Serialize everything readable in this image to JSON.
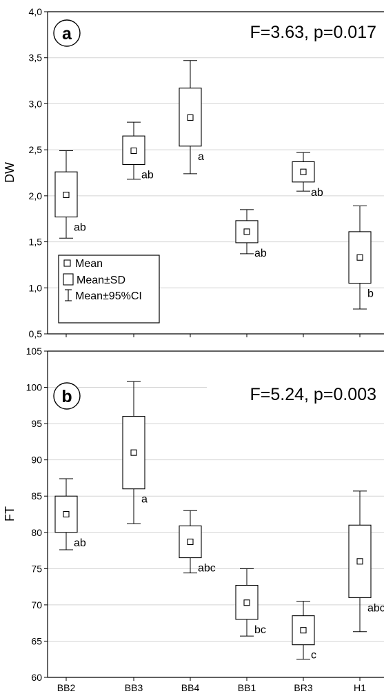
{
  "chart_data": [
    {
      "type": "box",
      "panel_label": "a",
      "annotation": "F=3.63, p=0.017",
      "ylabel": "DW",
      "ylim": [
        0.5,
        4.0
      ],
      "yticks": [
        0.5,
        1.0,
        1.5,
        2.0,
        2.5,
        3.0,
        3.5,
        4.0
      ],
      "ytick_labels": [
        "0,5",
        "1,0",
        "1,5",
        "2,0",
        "2,5",
        "3,0",
        "3,5",
        "4,0"
      ],
      "grid": true,
      "legend": {
        "placement": "bottom-left",
        "entries": [
          "Mean",
          "Mean±SD",
          "Mean±95%CI"
        ]
      },
      "categories": [
        "BB2",
        "BB3",
        "BB4",
        "BB1",
        "BR3",
        "H1"
      ],
      "boxes": [
        {
          "category": "BB2",
          "mean": 2.01,
          "sd_low": 1.77,
          "sd_high": 2.26,
          "ci_low": 1.54,
          "ci_high": 2.49,
          "group": "ab"
        },
        {
          "category": "BB3",
          "mean": 2.49,
          "sd_low": 2.34,
          "sd_high": 2.65,
          "ci_low": 2.18,
          "ci_high": 2.8,
          "group": "ab"
        },
        {
          "category": "BB4",
          "mean": 2.85,
          "sd_low": 2.54,
          "sd_high": 3.17,
          "ci_low": 2.24,
          "ci_high": 3.47,
          "group": "a"
        },
        {
          "category": "BB1",
          "mean": 1.61,
          "sd_low": 1.49,
          "sd_high": 1.73,
          "ci_low": 1.37,
          "ci_high": 1.85,
          "group": "ab"
        },
        {
          "category": "BR3",
          "mean": 2.26,
          "sd_low": 2.15,
          "sd_high": 2.37,
          "ci_low": 2.05,
          "ci_high": 2.47,
          "group": "ab"
        },
        {
          "category": "H1",
          "mean": 1.33,
          "sd_low": 1.05,
          "sd_high": 1.61,
          "ci_low": 0.77,
          "ci_high": 1.89,
          "group": "b"
        }
      ]
    },
    {
      "type": "box",
      "panel_label": "b",
      "annotation": "F=5.24, p=0.003",
      "ylabel": "FT",
      "ylim": [
        60,
        105
      ],
      "yticks": [
        60,
        65,
        70,
        75,
        80,
        85,
        90,
        95,
        100,
        105
      ],
      "ytick_labels": [
        "60",
        "65",
        "70",
        "75",
        "80",
        "85",
        "90",
        "95",
        "100",
        "105"
      ],
      "grid": true,
      "categories": [
        "BB2",
        "BB3",
        "BB4",
        "BB1",
        "BR3",
        "H1"
      ],
      "xtick_labels": [
        "BB2",
        "BB3",
        "BB4",
        "BB1",
        "BR3",
        "H1"
      ],
      "boxes": [
        {
          "category": "BB2",
          "mean": 82.5,
          "sd_low": 80.0,
          "sd_high": 85.0,
          "ci_low": 77.6,
          "ci_high": 87.4,
          "group": "ab"
        },
        {
          "category": "BB3",
          "mean": 91.0,
          "sd_low": 86.0,
          "sd_high": 96.0,
          "ci_low": 81.2,
          "ci_high": 100.8,
          "group": "a"
        },
        {
          "category": "BB4",
          "mean": 78.7,
          "sd_low": 76.5,
          "sd_high": 80.9,
          "ci_low": 74.4,
          "ci_high": 83.0,
          "group": "abc"
        },
        {
          "category": "BB1",
          "mean": 70.3,
          "sd_low": 68.0,
          "sd_high": 72.7,
          "ci_low": 65.7,
          "ci_high": 75.0,
          "group": "bc"
        },
        {
          "category": "BR3",
          "mean": 66.5,
          "sd_low": 64.5,
          "sd_high": 68.5,
          "ci_low": 62.5,
          "ci_high": 70.5,
          "group": "c"
        },
        {
          "category": "H1",
          "mean": 76.0,
          "sd_low": 71.0,
          "sd_high": 81.0,
          "ci_low": 66.3,
          "ci_high": 85.7,
          "group": "abc"
        }
      ]
    }
  ]
}
